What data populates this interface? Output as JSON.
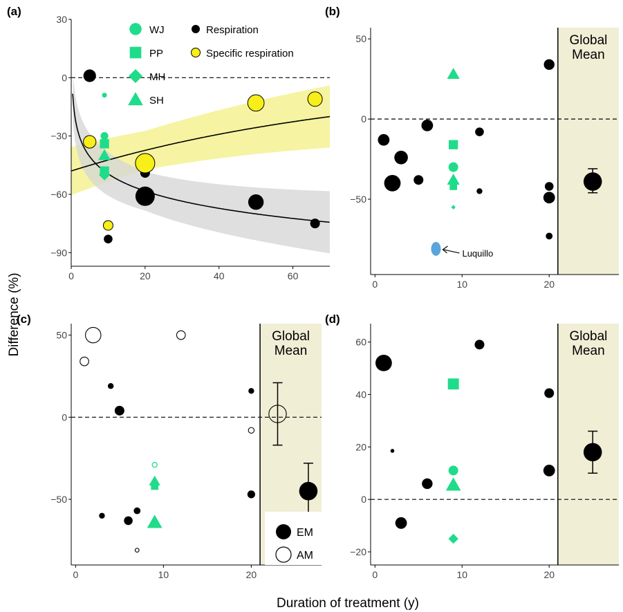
{
  "figure": {
    "ylabel": "Difference (%)",
    "xlabel": "Duration of treatment (y)"
  },
  "colors": {
    "green": "#1fdc8a",
    "yellow": "#f7ee1a",
    "yellow_band": "#f6f3a2",
    "grey_band": "#d7d7d7",
    "tan": "#f1eed6",
    "blue": "#5aa5dc",
    "black": "#000000"
  },
  "chart_data": [
    {
      "panel": "(a)",
      "type": "scatter",
      "xlim": [
        0,
        70
      ],
      "ylim": [
        -97,
        30
      ],
      "xticks": [
        0,
        20,
        40,
        60
      ],
      "yticks": [
        -90,
        -60,
        -30,
        0,
        30
      ],
      "legend_sites": [
        {
          "label": "WJ",
          "marker": "circle"
        },
        {
          "label": "PP",
          "marker": "square"
        },
        {
          "label": "MH",
          "marker": "diamond"
        },
        {
          "label": "SH",
          "marker": "triangle"
        }
      ],
      "legend_metrics": [
        {
          "label": "Respiration",
          "color": "black"
        },
        {
          "label": "Specific respiration",
          "color": "yellow"
        }
      ],
      "respiration": [
        {
          "x": 5,
          "y": 1,
          "s": 1.3
        },
        {
          "x": 10,
          "y": -83,
          "s": 0.9
        },
        {
          "x": 20,
          "y": -49,
          "s": 1.0
        },
        {
          "x": 20,
          "y": -61,
          "s": 2.0
        },
        {
          "x": 50,
          "y": -64,
          "s": 1.6
        },
        {
          "x": 66,
          "y": -75,
          "s": 1.0
        }
      ],
      "specific_respiration": [
        {
          "x": 5,
          "y": -33,
          "s": 1.3
        },
        {
          "x": 10,
          "y": -76,
          "s": 1.0
        },
        {
          "x": 20,
          "y": -44,
          "s": 2.0
        },
        {
          "x": 50,
          "y": -13,
          "s": 1.7
        },
        {
          "x": 66,
          "y": -11,
          "s": 1.5
        }
      ],
      "sites": [
        {
          "marker": "circle",
          "x": 9,
          "y": -9,
          "s": 0.5
        },
        {
          "marker": "circle",
          "x": 9,
          "y": -30,
          "s": 0.8
        },
        {
          "marker": "square",
          "x": 9,
          "y": -34,
          "s": 1.0
        },
        {
          "marker": "triangle",
          "x": 9,
          "y": -40,
          "s": 1.0
        },
        {
          "marker": "square",
          "x": 9,
          "y": -48,
          "s": 1.0
        },
        {
          "marker": "diamond",
          "x": 9,
          "y": -50,
          "s": 1.0
        }
      ],
      "fit_respiration": {
        "intercept": -20,
        "coef": -12.8,
        "band": 10
      },
      "fit_specific": {
        "start": -48,
        "growth": 0.0125,
        "band": 10
      }
    },
    {
      "panel": "(b)",
      "type": "scatter",
      "xlim": [
        -0.5,
        28
      ],
      "ylim": [
        -97,
        57
      ],
      "xticks": [
        0,
        10,
        20
      ],
      "yticks": [
        -50,
        0,
        50
      ],
      "global_from": 21,
      "global_label": [
        "Global",
        "Mean"
      ],
      "black_points": [
        {
          "x": 1,
          "y": -13,
          "s": 1.2
        },
        {
          "x": 2,
          "y": -40,
          "s": 1.7
        },
        {
          "x": 3,
          "y": -24,
          "s": 1.4
        },
        {
          "x": 5,
          "y": -38,
          "s": 1.0
        },
        {
          "x": 6,
          "y": -4,
          "s": 1.2
        },
        {
          "x": 12,
          "y": -8,
          "s": 0.9
        },
        {
          "x": 12,
          "y": -45,
          "s": 0.6
        },
        {
          "x": 20,
          "y": 34,
          "s": 1.1
        },
        {
          "x": 20,
          "y": -42,
          "s": 0.9
        },
        {
          "x": 20,
          "y": -49,
          "s": 1.2
        },
        {
          "x": 20,
          "y": -73,
          "s": 0.7
        }
      ],
      "green_points": [
        {
          "marker": "triangle",
          "x": 9,
          "y": 28,
          "s": 1.0
        },
        {
          "marker": "square",
          "x": 9,
          "y": -16,
          "s": 1.0
        },
        {
          "marker": "circle",
          "x": 9,
          "y": -30,
          "s": 1.0
        },
        {
          "marker": "triangle",
          "x": 9,
          "y": -38,
          "s": 1.0
        },
        {
          "marker": "square",
          "x": 9,
          "y": -42,
          "s": 0.8
        },
        {
          "marker": "diamond",
          "x": 9,
          "y": -55,
          "s": 0.4
        }
      ],
      "annotation": {
        "label": "Luquillo",
        "x": 7,
        "y": -81
      },
      "global_mean": {
        "x": 25,
        "y": -39,
        "low": -46,
        "high": -31,
        "s": 1.9
      }
    },
    {
      "panel": "(c)",
      "type": "scatter",
      "xlim": [
        -0.5,
        28
      ],
      "ylim": [
        -90,
        57
      ],
      "xticks": [
        0,
        10,
        20
      ],
      "yticks": [
        -50,
        0,
        50
      ],
      "global_from": 21,
      "global_label": [
        "Global",
        "Mean"
      ],
      "legend": [
        {
          "label": "EM",
          "fill": "filled"
        },
        {
          "label": "AM",
          "fill": "open"
        }
      ],
      "em_points": [
        {
          "x": 3,
          "y": -60,
          "s": 0.6
        },
        {
          "x": 4,
          "y": 19,
          "s": 0.6
        },
        {
          "x": 5,
          "y": 4,
          "s": 1.0
        },
        {
          "x": 6,
          "y": -63,
          "s": 0.9
        },
        {
          "x": 7,
          "y": -57,
          "s": 0.7
        },
        {
          "x": 20,
          "y": 16,
          "s": 0.6
        },
        {
          "x": 20,
          "y": -47,
          "s": 0.8
        }
      ],
      "am_points": [
        {
          "x": 1,
          "y": 34,
          "s": 0.9
        },
        {
          "x": 2,
          "y": 50,
          "s": 1.6
        },
        {
          "x": 7,
          "y": -81,
          "s": 0.4
        },
        {
          "x": 12,
          "y": 50,
          "s": 0.9
        },
        {
          "x": 20,
          "y": -8,
          "s": 0.6
        }
      ],
      "green_points": [
        {
          "marker": "circle-open",
          "x": 9,
          "y": -29,
          "s": 0.5
        },
        {
          "marker": "triangle",
          "x": 9,
          "y": -39,
          "s": 0.9
        },
        {
          "marker": "square",
          "x": 9,
          "y": -42,
          "s": 0.8
        },
        {
          "marker": "triangle",
          "x": 9,
          "y": -64,
          "s": 1.2
        }
      ],
      "global_em": {
        "x": 26.5,
        "y": -45,
        "low": -62,
        "high": -28,
        "s": 1.9
      },
      "global_am": {
        "x": 23,
        "y": 2,
        "low": -17,
        "high": 21,
        "s": 1.8
      }
    },
    {
      "panel": "(d)",
      "type": "scatter",
      "xlim": [
        -0.5,
        28
      ],
      "ylim": [
        -25,
        67
      ],
      "xticks": [
        0,
        10,
        20
      ],
      "yticks": [
        -20,
        0,
        20,
        40,
        60
      ],
      "global_from": 21,
      "global_label": [
        "Global",
        "Mean"
      ],
      "black_points": [
        {
          "x": 1,
          "y": 52,
          "s": 1.7
        },
        {
          "x": 2,
          "y": 18.5,
          "s": 0.4
        },
        {
          "x": 3,
          "y": -9,
          "s": 1.2
        },
        {
          "x": 6,
          "y": 6,
          "s": 1.1
        },
        {
          "x": 12,
          "y": 59,
          "s": 1.0
        },
        {
          "x": 20,
          "y": 40.5,
          "s": 1.0
        },
        {
          "x": 20,
          "y": 11,
          "s": 1.2
        }
      ],
      "green_points": [
        {
          "marker": "square",
          "x": 9,
          "y": 44,
          "s": 1.2
        },
        {
          "marker": "circle",
          "x": 9,
          "y": 11,
          "s": 1.0
        },
        {
          "marker": "triangle",
          "x": 9,
          "y": 5.5,
          "s": 1.2
        },
        {
          "marker": "diamond",
          "x": 9,
          "y": -15,
          "s": 0.9
        }
      ],
      "global_mean": {
        "x": 25,
        "y": 18,
        "low": 10,
        "high": 26,
        "s": 1.9
      }
    }
  ]
}
